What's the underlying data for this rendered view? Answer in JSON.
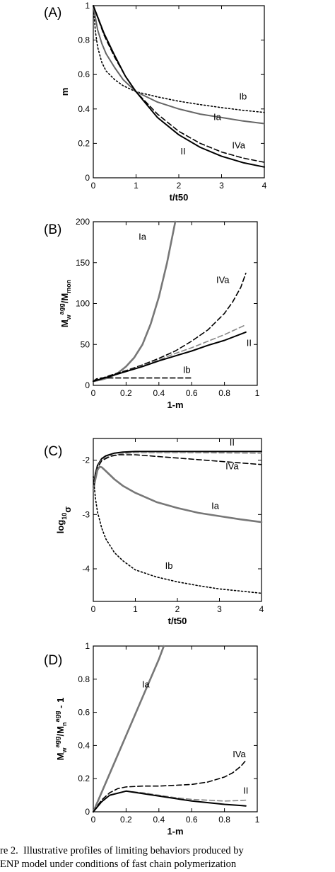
{
  "chart_data": [
    {
      "type": "line",
      "panel_label": "(A)",
      "xlabel": "t/t50",
      "ylabel": "m",
      "xlim": [
        0,
        4
      ],
      "ylim": [
        0,
        1
      ],
      "xticks": [
        "0",
        "1",
        "2",
        "3",
        "4"
      ],
      "yticks": [
        "0",
        "0.2",
        "0.4",
        "0.6",
        "0.8",
        "1"
      ],
      "series": [
        {
          "name": "Ib",
          "style": "dotted",
          "color": "#000000",
          "x": [
            0,
            0.05,
            0.1,
            0.2,
            0.3,
            0.5,
            0.7,
            1,
            1.5,
            2,
            2.5,
            3,
            3.5,
            4
          ],
          "y": [
            1,
            0.85,
            0.76,
            0.67,
            0.62,
            0.57,
            0.535,
            0.5,
            0.47,
            0.445,
            0.425,
            0.408,
            0.392,
            0.38
          ]
        },
        {
          "name": "Ia",
          "style": "solid",
          "color": "#666666",
          "x": [
            0,
            0.1,
            0.2,
            0.3,
            0.5,
            0.7,
            1,
            1.5,
            2,
            2.5,
            3,
            3.5,
            4
          ],
          "y": [
            1,
            0.86,
            0.78,
            0.72,
            0.64,
            0.57,
            0.5,
            0.44,
            0.4,
            0.37,
            0.35,
            0.33,
            0.315
          ]
        },
        {
          "name": "IVa",
          "style": "dashed",
          "color": "#000000",
          "x": [
            0,
            0.25,
            0.5,
            0.75,
            1,
            1.5,
            2,
            2.5,
            3,
            3.5,
            4
          ],
          "y": [
            1,
            0.83,
            0.7,
            0.59,
            0.5,
            0.37,
            0.27,
            0.2,
            0.15,
            0.115,
            0.09
          ]
        },
        {
          "name": "II",
          "style": "solid",
          "color": "#000000",
          "x": [
            0,
            0.25,
            0.5,
            0.75,
            1,
            1.5,
            2,
            2.5,
            3,
            3.5,
            4
          ],
          "y": [
            1,
            0.84,
            0.71,
            0.59,
            0.5,
            0.35,
            0.25,
            0.177,
            0.125,
            0.088,
            0.0625
          ]
        }
      ],
      "annotations": [
        {
          "text": "Ib",
          "x": 3.5,
          "y": 0.455
        },
        {
          "text": "Ia",
          "x": 2.9,
          "y": 0.335
        },
        {
          "text": "IVa",
          "x": 3.4,
          "y": 0.17
        },
        {
          "text": "II",
          "x": 2.1,
          "y": 0.135
        }
      ]
    },
    {
      "type": "line",
      "panel_label": "(B)",
      "xlabel": "1-m",
      "ylabel_main": "M",
      "ylabel_sub": "w",
      "ylabel_sup": "agg",
      "ylabel_rest": "/M",
      "ylabel_sub2": "mon",
      "xlim": [
        0,
        1
      ],
      "ylim": [
        0,
        200
      ],
      "xticks": [
        "0",
        "0.2",
        "0.4",
        "0.6",
        "0.8",
        "1"
      ],
      "yticks": [
        "0",
        "50",
        "100",
        "150",
        "200"
      ],
      "series": [
        {
          "name": "Ia",
          "style": "solid",
          "color": "#777777",
          "x": [
            0,
            0.05,
            0.1,
            0.15,
            0.2,
            0.25,
            0.3,
            0.35,
            0.4,
            0.45,
            0.5
          ],
          "y": [
            5,
            7,
            10,
            15,
            23,
            34,
            50,
            75,
            108,
            150,
            200
          ]
        },
        {
          "name": "IVa",
          "style": "dashed",
          "color": "#000000",
          "x": [
            0,
            0.1,
            0.2,
            0.3,
            0.4,
            0.5,
            0.6,
            0.7,
            0.8,
            0.85,
            0.9,
            0.93
          ],
          "y": [
            5,
            12,
            18,
            25,
            33,
            42,
            54,
            68,
            88,
            102,
            120,
            137
          ]
        },
        {
          "name": "",
          "style": "dashed",
          "color": "#888888",
          "x": [
            0,
            0.1,
            0.2,
            0.3,
            0.4,
            0.5,
            0.6,
            0.7,
            0.8,
            0.93
          ],
          "y": [
            5,
            11,
            17,
            24,
            31,
            39,
            46,
            54,
            62,
            74
          ]
        },
        {
          "name": "II",
          "style": "solid",
          "color": "#000000",
          "x": [
            0,
            0.1,
            0.2,
            0.3,
            0.4,
            0.5,
            0.6,
            0.7,
            0.8,
            0.93
          ],
          "y": [
            5,
            11,
            17,
            23,
            30,
            36,
            42,
            49,
            55,
            65
          ]
        },
        {
          "name": "Ib",
          "style": "dashed",
          "color": "#000000",
          "x": [
            0,
            0.02,
            0.05,
            0.6
          ],
          "y": [
            5,
            8,
            9,
            9
          ]
        }
      ],
      "annotations": [
        {
          "text": "Ia",
          "x": 0.3,
          "y": 178
        },
        {
          "text": "IVa",
          "x": 0.79,
          "y": 125
        },
        {
          "text": "II",
          "x": 0.95,
          "y": 48
        },
        {
          "text": "Ib",
          "x": 0.57,
          "y": 15
        }
      ]
    },
    {
      "type": "line",
      "panel_label": "(C)",
      "xlabel": "t/t50",
      "ylabel_main": "log",
      "ylabel_sub": "10",
      "ylabel_rest": "σ",
      "xlim": [
        0,
        4
      ],
      "ylim": [
        -4.6,
        -1.6
      ],
      "xticks": [
        "0",
        "1",
        "2",
        "3",
        "4"
      ],
      "yticks": [
        "-4",
        "-3",
        "-2"
      ],
      "ytick_values": [
        -4,
        -3,
        -2
      ],
      "series": [
        {
          "name": "II",
          "style": "solid",
          "color": "#000000",
          "x": [
            0,
            0.05,
            0.1,
            0.2,
            0.3,
            0.5,
            0.7,
            1,
            1.5,
            2,
            3,
            4
          ],
          "y": [
            -2.5,
            -2.25,
            -2.1,
            -1.97,
            -1.92,
            -1.87,
            -1.85,
            -1.84,
            -1.84,
            -1.84,
            -1.84,
            -1.84
          ]
        },
        {
          "name": "",
          "style": "dashed",
          "color": "#888888",
          "x": [
            0,
            0.1,
            0.2,
            0.4,
            0.7,
            1,
            2,
            3,
            4
          ],
          "y": [
            -2.5,
            -2.12,
            -1.99,
            -1.92,
            -1.88,
            -1.86,
            -1.86,
            -1.865,
            -1.87
          ]
        },
        {
          "name": "IVa",
          "style": "dashed",
          "color": "#000000",
          "x": [
            0,
            0.1,
            0.2,
            0.4,
            0.6,
            1,
            1.5,
            2,
            2.5,
            3,
            3.5,
            4
          ],
          "y": [
            -2.5,
            -2.14,
            -2.01,
            -1.93,
            -1.9,
            -1.9,
            -1.93,
            -1.96,
            -1.99,
            -2.02,
            -2.05,
            -2.08
          ]
        },
        {
          "name": "Ia",
          "style": "solid",
          "color": "#777777",
          "x": [
            0,
            0.05,
            0.1,
            0.15,
            0.2,
            0.3,
            0.5,
            0.7,
            1,
            1.5,
            2,
            2.5,
            3,
            3.5,
            4
          ],
          "y": [
            -2.55,
            -2.35,
            -2.18,
            -2.12,
            -2.13,
            -2.2,
            -2.35,
            -2.47,
            -2.6,
            -2.77,
            -2.88,
            -2.97,
            -3.03,
            -3.09,
            -3.14
          ]
        },
        {
          "name": "Ib",
          "style": "dotted",
          "color": "#000000",
          "x": [
            0,
            0.05,
            0.1,
            0.2,
            0.3,
            0.5,
            0.7,
            1,
            1.5,
            2,
            2.5,
            3,
            3.5,
            4
          ],
          "y": [
            -2.3,
            -2.7,
            -2.95,
            -3.25,
            -3.45,
            -3.7,
            -3.85,
            -4.02,
            -4.15,
            -4.24,
            -4.31,
            -4.37,
            -4.41,
            -4.45
          ]
        }
      ],
      "annotations": [
        {
          "text": "II",
          "x": 3.3,
          "y": -1.73
        },
        {
          "text": "IVa",
          "x": 3.3,
          "y": -2.17
        },
        {
          "text": "Ia",
          "x": 2.9,
          "y": -2.9
        },
        {
          "text": "Ib",
          "x": 1.8,
          "y": -4.0
        }
      ]
    },
    {
      "type": "line",
      "panel_label": "(D)",
      "xlabel": "1-m",
      "ylabel_main": "M",
      "ylabel_sub": "w",
      "ylabel_sup": "agg",
      "ylabel_rest": "/M",
      "ylabel_sub2": "n",
      "ylabel_sup2": "agg",
      "ylabel_tail": " - 1",
      "xlim": [
        0,
        1
      ],
      "ylim": [
        0,
        1
      ],
      "xticks": [
        "0",
        "0.2",
        "0.4",
        "0.6",
        "0.8",
        "1"
      ],
      "yticks": [
        "0",
        "0.2",
        "0.4",
        "0.6",
        "0.8",
        "1"
      ],
      "series": [
        {
          "name": "Ia",
          "style": "solid",
          "color": "#777777",
          "x": [
            0,
            0.1,
            0.2,
            0.3,
            0.4,
            0.43
          ],
          "y": [
            0,
            0.23,
            0.46,
            0.69,
            0.92,
            1
          ]
        },
        {
          "name": "IVa",
          "style": "dashed",
          "color": "#000000",
          "x": [
            0,
            0.05,
            0.1,
            0.15,
            0.2,
            0.3,
            0.4,
            0.5,
            0.6,
            0.7,
            0.8,
            0.85,
            0.9,
            0.93
          ],
          "y": [
            0,
            0.07,
            0.115,
            0.14,
            0.15,
            0.155,
            0.155,
            0.16,
            0.165,
            0.18,
            0.21,
            0.235,
            0.275,
            0.31
          ]
        },
        {
          "name": "",
          "style": "dashed",
          "color": "#888888",
          "x": [
            0,
            0.05,
            0.1,
            0.2,
            0.3,
            0.4,
            0.5,
            0.6,
            0.7,
            0.8,
            0.9,
            0.93
          ],
          "y": [
            0,
            0.06,
            0.1,
            0.125,
            0.115,
            0.1,
            0.085,
            0.075,
            0.07,
            0.065,
            0.068,
            0.07
          ]
        },
        {
          "name": "II",
          "style": "solid",
          "color": "#000000",
          "x": [
            0,
            0.05,
            0.1,
            0.2,
            0.3,
            0.4,
            0.5,
            0.6,
            0.7,
            0.8,
            0.9,
            0.93
          ],
          "y": [
            0,
            0.06,
            0.1,
            0.125,
            0.11,
            0.095,
            0.08,
            0.065,
            0.055,
            0.045,
            0.038,
            0.035
          ]
        }
      ],
      "annotations": [
        {
          "text": "Ia",
          "x": 0.32,
          "y": 0.75
        },
        {
          "text": "IVa",
          "x": 0.89,
          "y": 0.33
        },
        {
          "text": "II",
          "x": 0.93,
          "y": 0.11
        }
      ]
    }
  ],
  "caption": {
    "line1": "re 2.  Illustrative profiles of limiting behaviors produced by",
    "line2": "ENP model under conditions of fast chain polymerization"
  }
}
